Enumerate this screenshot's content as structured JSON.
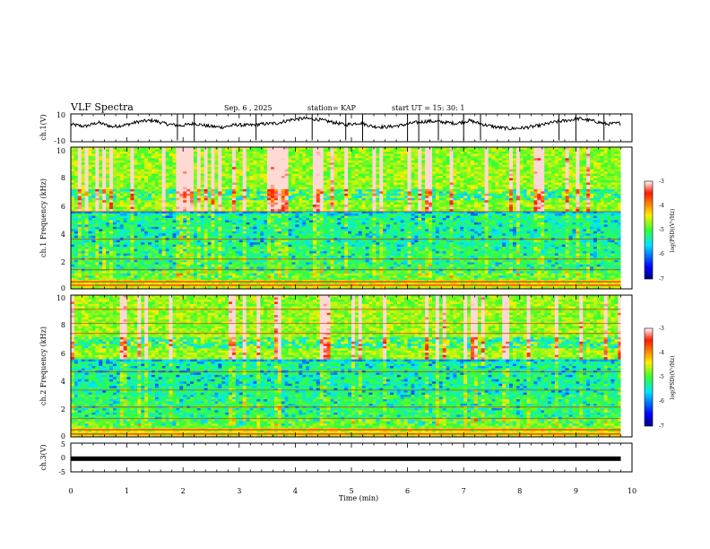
{
  "header": {
    "title": "VLF Spectra",
    "date": "Sep. 6 , 2025",
    "station": "station= KAP",
    "start": "start  UT  =   15: 30: 1"
  },
  "colorbar": {
    "label": "log(PSD)(V²/Hz)",
    "ticks": [
      "-3",
      "-4",
      "-5",
      "-6",
      "-7"
    ],
    "range": [
      -7,
      -3
    ]
  },
  "chart_data": [
    {
      "type": "line",
      "name": "ch1-waveform",
      "ylabel": "ch.1(V)",
      "ylim": [
        -10,
        10
      ],
      "yticks": [
        "10",
        "-10"
      ],
      "xlim": [
        0,
        10
      ],
      "x_end": 9.8,
      "series": [
        {
          "name": "ch.1",
          "values": [
            2.5,
            1.0,
            3.8,
            0.8,
            2.1,
            4.6,
            5.3,
            2.7,
            1.6,
            3.1,
            1.2,
            0.4,
            2.2,
            1.8,
            2.8,
            3.3,
            5.8,
            6.8,
            6.0,
            4.1,
            2.2,
            3.6,
            0.9,
            0.6,
            1.8,
            3.7,
            4.8,
            4.2,
            3.2,
            5.2,
            2.4,
            0.4,
            -0.6,
            0.1,
            1.4,
            3.8,
            5.2,
            6.6,
            4.9,
            2.7,
            3.4
          ]
        }
      ]
    },
    {
      "type": "heatmap",
      "name": "ch1-spectrogram",
      "ylabel": "ch.1 Frequency  (kHz)",
      "ylim": [
        0,
        10
      ],
      "yticks": [
        "10",
        "8",
        "6",
        "4",
        "2",
        "0"
      ],
      "xlim": [
        0,
        10
      ],
      "x_end": 9.8,
      "colorbar_range": [
        -7,
        -3
      ]
    },
    {
      "type": "heatmap",
      "name": "ch2-spectrogram",
      "ylabel": "ch.2 Frequency  (kHz)",
      "ylim": [
        0,
        10
      ],
      "yticks": [
        "10",
        "8",
        "6",
        "4",
        "2",
        "0"
      ],
      "xlim": [
        0,
        10
      ],
      "x_end": 9.8,
      "colorbar_range": [
        -7,
        -3
      ]
    },
    {
      "type": "line",
      "name": "ch3-waveform",
      "ylabel": "ch.3(V)",
      "ylim": [
        -5,
        5
      ],
      "yticks": [
        "5",
        "0",
        "-5"
      ],
      "xlim": [
        0,
        10
      ],
      "x_end": 9.8,
      "series": [
        {
          "name": "ch.3",
          "values": [
            -0.4,
            -0.4
          ]
        }
      ]
    }
  ],
  "xaxis": {
    "label": "Time  (min)",
    "ticks": [
      "0",
      "1",
      "2",
      "3",
      "4",
      "5",
      "6",
      "7",
      "8",
      "9",
      "10"
    ]
  }
}
